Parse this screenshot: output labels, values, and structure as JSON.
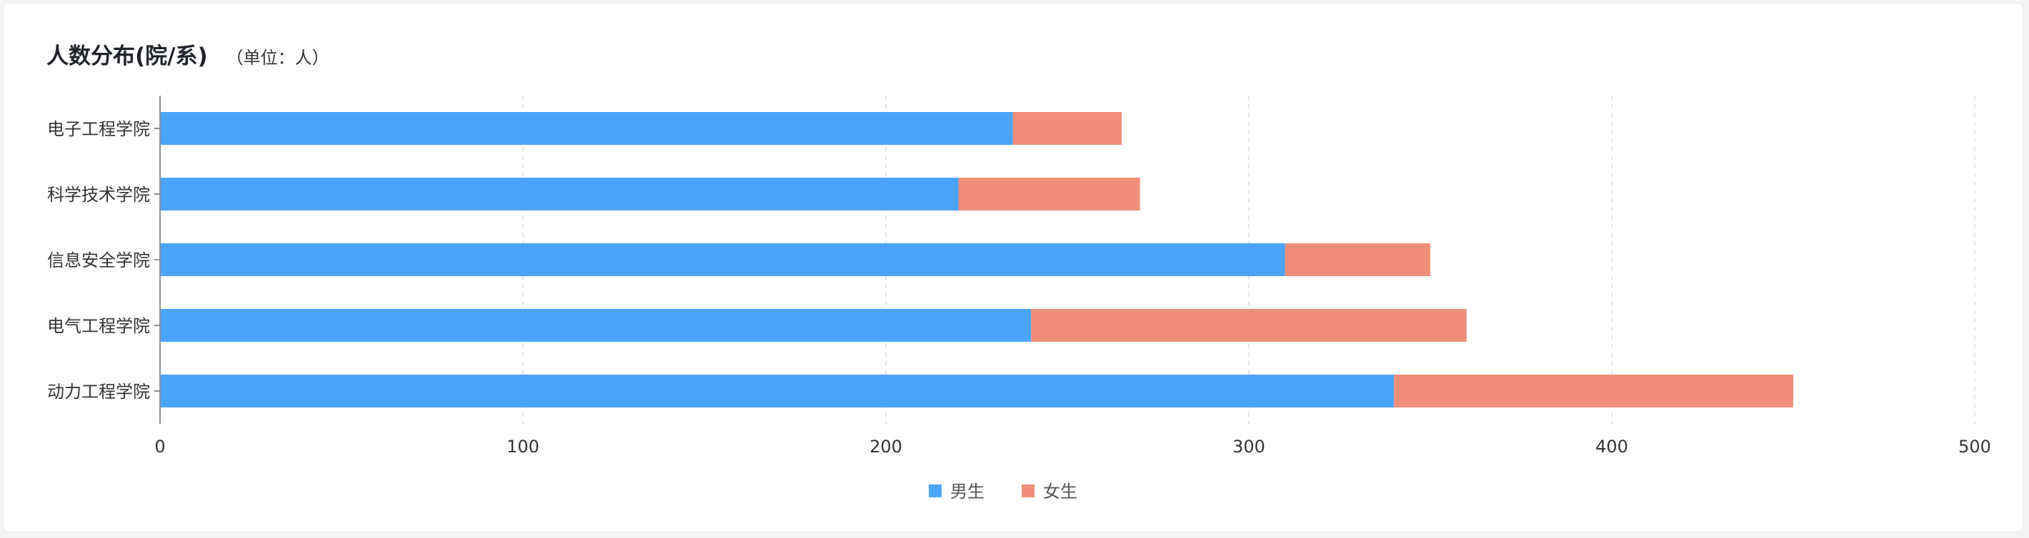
{
  "card": {
    "title": "人数分布(院/系)",
    "subtitle": "（单位：人）"
  },
  "chart_data": {
    "type": "bar",
    "orientation": "horizontal",
    "stacked": true,
    "categories": [
      "电子工程学院",
      "科学技术学院",
      "信息安全学院",
      "电气工程学院",
      "动力工程学院"
    ],
    "series": [
      {
        "name": "男生",
        "color": "#4ba4fb",
        "values": [
          235,
          220,
          310,
          240,
          340
        ]
      },
      {
        "name": "女生",
        "color": "#f08e7a",
        "values": [
          30,
          50,
          40,
          120,
          110
        ]
      }
    ],
    "xlim": [
      0,
      500
    ],
    "xticks": [
      0,
      100,
      200,
      300,
      400,
      500
    ],
    "grid": true,
    "legend_position": "bottom-center"
  }
}
